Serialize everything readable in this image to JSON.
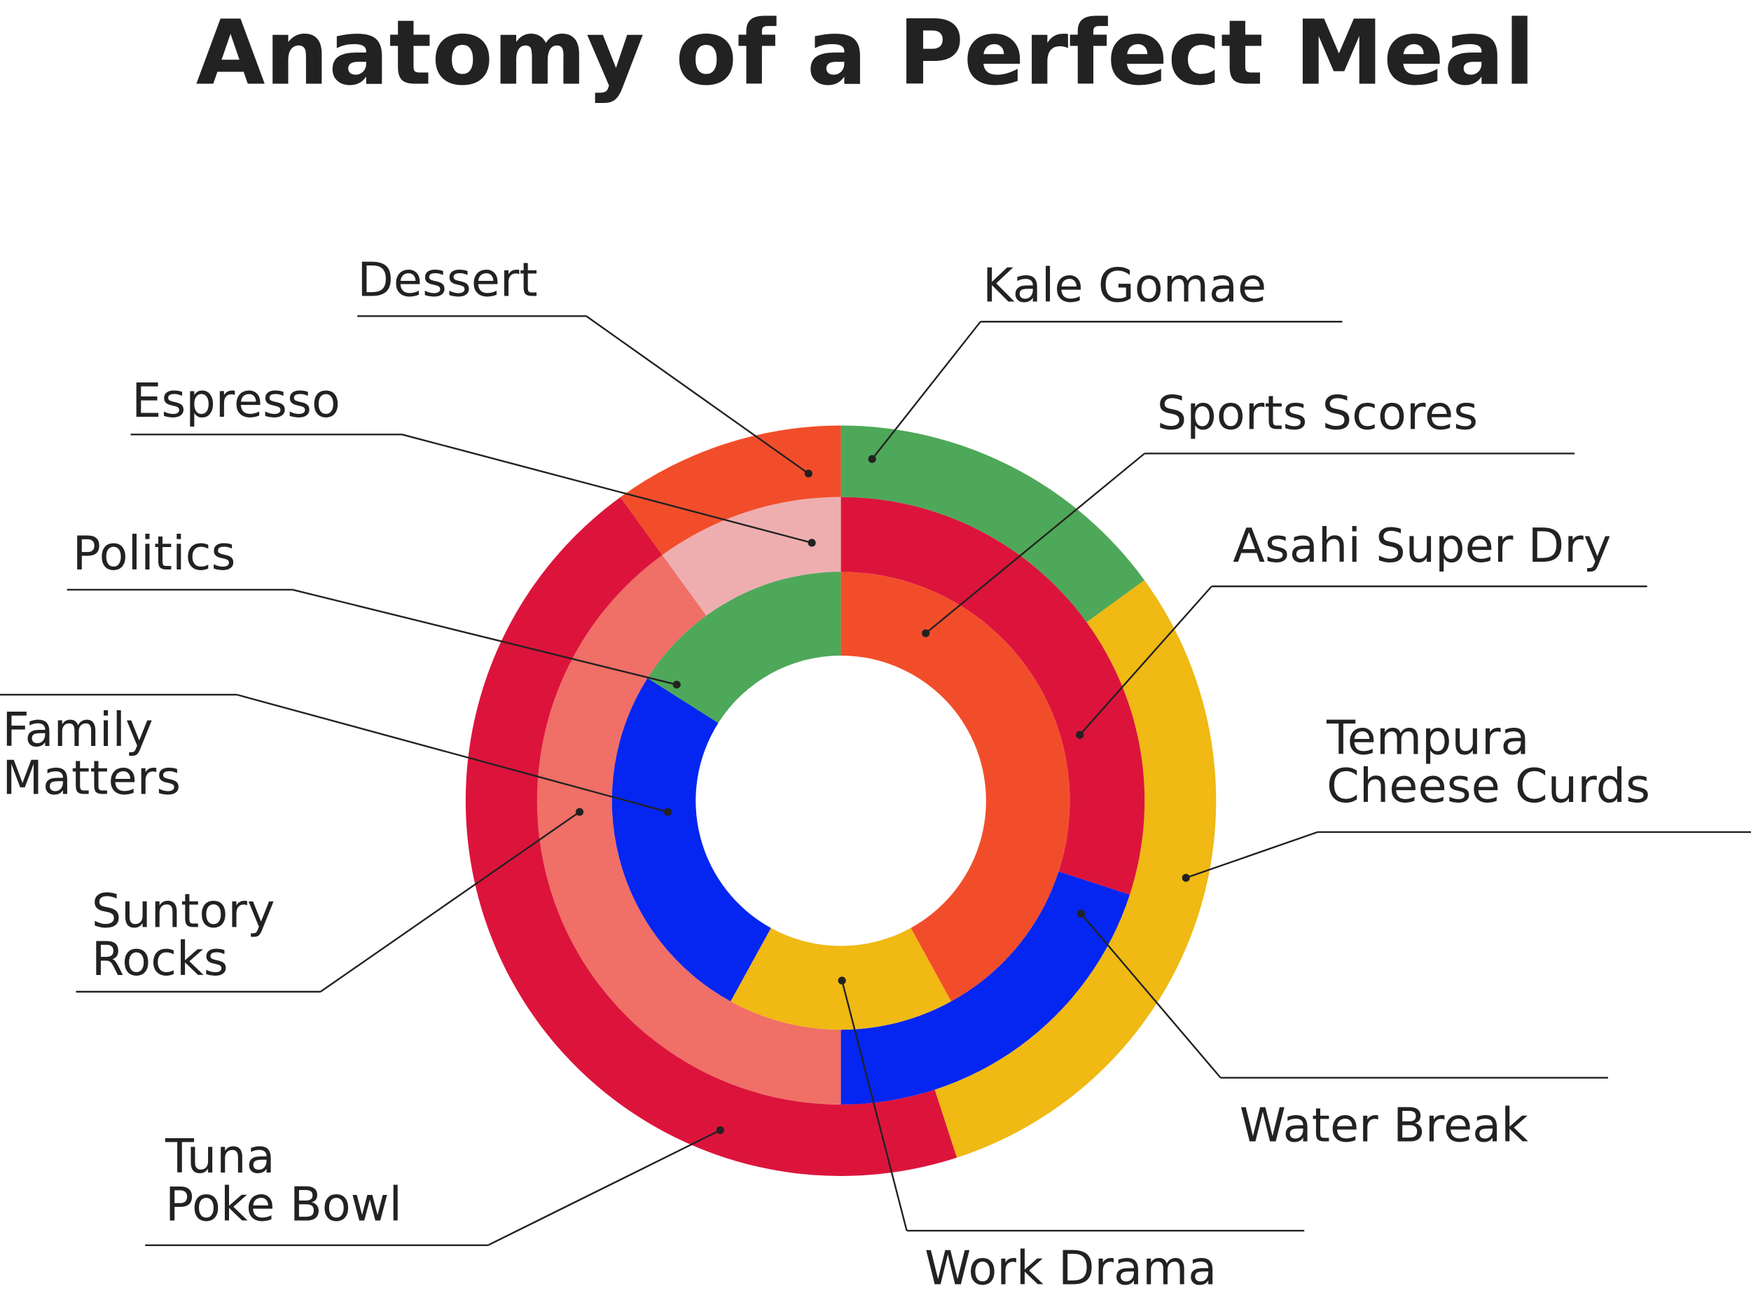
{
  "chart_data": {
    "type": "donut",
    "title": "Anatomy of a Perfect Meal",
    "rings": [
      {
        "categories": [
          "Kale Gomae",
          "Tempura\nCheese Curds",
          "Tuna\nPoke Bowl",
          "Dessert"
        ],
        "values": [
          15,
          30,
          45,
          10
        ],
        "colors": [
          "#4ea859",
          "#f0b913",
          "#dc143c",
          "#f24d2a"
        ]
      },
      {
        "categories": [
          "Asahi Super Dry",
          "Water Break",
          "Suntory\nRocks",
          "Espresso"
        ],
        "values": [
          30,
          20,
          40,
          10
        ],
        "colors": [
          "#dc143c",
          "#0526f0",
          "#f06f67",
          "#eeaeb0"
        ]
      },
      {
        "categories": [
          "Sports Scores",
          "Work Drama",
          "Family\nMatters",
          "Politics"
        ],
        "values": [
          42,
          16,
          26,
          16
        ],
        "colors": [
          "#f24d2a",
          "#f0b913",
          "#0526f0",
          "#4ea859"
        ]
      }
    ]
  }
}
